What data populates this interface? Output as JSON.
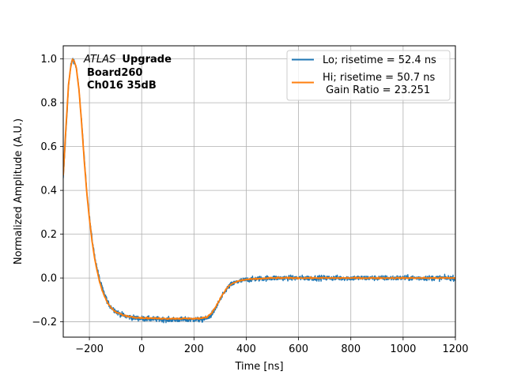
{
  "chart_data": {
    "type": "line",
    "xlabel": "Time [ns]",
    "ylabel": "Normalized Amplitude (A.U.)",
    "xlim": [
      -300,
      1200
    ],
    "ylim": [
      -0.27,
      1.06
    ],
    "x_ticks": [
      -200,
      0,
      200,
      400,
      600,
      800,
      1000,
      1200
    ],
    "x_tick_labels": [
      "−200",
      "0",
      "200",
      "400",
      "600",
      "800",
      "1000",
      "1200"
    ],
    "y_ticks": [
      -0.2,
      0.0,
      0.2,
      0.4,
      0.6,
      0.8,
      1.0
    ],
    "y_tick_labels": [
      "−0.2",
      "0.0",
      "0.2",
      "0.4",
      "0.6",
      "0.8",
      "1.0"
    ],
    "grid": true,
    "legend_position": "top-right",
    "annotation": {
      "experiment_italic": "ATLAS",
      "experiment_bold": "Upgrade",
      "line2": "Board260",
      "line3": "Ch016 35dB"
    },
    "series": [
      {
        "name": "Lo; risetime = 52.4 ns",
        "color": "#1f77b4",
        "noisy": true,
        "points": [
          [
            -300,
            0.45
          ],
          [
            -290,
            0.66
          ],
          [
            -280,
            0.87
          ],
          [
            -272,
            0.96
          ],
          [
            -265,
            1.0
          ],
          [
            -258,
            0.99
          ],
          [
            -250,
            0.96
          ],
          [
            -240,
            0.86
          ],
          [
            -230,
            0.72
          ],
          [
            -220,
            0.55
          ],
          [
            -210,
            0.4
          ],
          [
            -200,
            0.28
          ],
          [
            -190,
            0.18
          ],
          [
            -180,
            0.1
          ],
          [
            -170,
            0.04
          ],
          [
            -160,
            -0.01
          ],
          [
            -150,
            -0.05
          ],
          [
            -140,
            -0.08
          ],
          [
            -130,
            -0.11
          ],
          [
            -120,
            -0.13
          ],
          [
            -110,
            -0.14
          ],
          [
            -100,
            -0.15
          ],
          [
            -90,
            -0.16
          ],
          [
            -80,
            -0.165
          ],
          [
            -70,
            -0.17
          ],
          [
            -60,
            -0.175
          ],
          [
            -50,
            -0.177
          ],
          [
            -40,
            -0.18
          ],
          [
            -20,
            -0.183
          ],
          [
            0,
            -0.185
          ],
          [
            50,
            -0.188
          ],
          [
            100,
            -0.19
          ],
          [
            150,
            -0.19
          ],
          [
            200,
            -0.19
          ],
          [
            230,
            -0.19
          ],
          [
            250,
            -0.185
          ],
          [
            265,
            -0.17
          ],
          [
            280,
            -0.145
          ],
          [
            295,
            -0.11
          ],
          [
            310,
            -0.08
          ],
          [
            325,
            -0.05
          ],
          [
            340,
            -0.032
          ],
          [
            360,
            -0.02
          ],
          [
            380,
            -0.013
          ],
          [
            400,
            -0.008
          ],
          [
            450,
            -0.003
          ],
          [
            500,
            0.0
          ],
          [
            600,
            0.0
          ],
          [
            700,
            0.0
          ],
          [
            800,
            0.0
          ],
          [
            900,
            0.0
          ],
          [
            1000,
            0.0
          ],
          [
            1100,
            0.0
          ],
          [
            1200,
            0.0
          ]
        ]
      },
      {
        "name": "Hi; risetime = 50.7 ns\n Gain Ratio = 23.251",
        "color": "#ff7f0e",
        "noisy": false,
        "points": [
          [
            -300,
            0.47
          ],
          [
            -290,
            0.68
          ],
          [
            -280,
            0.88
          ],
          [
            -272,
            0.96
          ],
          [
            -265,
            1.0
          ],
          [
            -258,
            0.99
          ],
          [
            -250,
            0.96
          ],
          [
            -240,
            0.86
          ],
          [
            -230,
            0.71
          ],
          [
            -220,
            0.54
          ],
          [
            -210,
            0.39
          ],
          [
            -200,
            0.27
          ],
          [
            -190,
            0.17
          ],
          [
            -180,
            0.09
          ],
          [
            -170,
            0.03
          ],
          [
            -160,
            -0.02
          ],
          [
            -150,
            -0.06
          ],
          [
            -140,
            -0.09
          ],
          [
            -130,
            -0.115
          ],
          [
            -120,
            -0.13
          ],
          [
            -110,
            -0.145
          ],
          [
            -100,
            -0.155
          ],
          [
            -90,
            -0.16
          ],
          [
            -80,
            -0.165
          ],
          [
            -70,
            -0.17
          ],
          [
            -60,
            -0.173
          ],
          [
            -50,
            -0.175
          ],
          [
            -40,
            -0.177
          ],
          [
            -20,
            -0.18
          ],
          [
            0,
            -0.182
          ],
          [
            50,
            -0.184
          ],
          [
            100,
            -0.185
          ],
          [
            150,
            -0.185
          ],
          [
            200,
            -0.185
          ],
          [
            230,
            -0.184
          ],
          [
            250,
            -0.178
          ],
          [
            265,
            -0.162
          ],
          [
            280,
            -0.138
          ],
          [
            295,
            -0.105
          ],
          [
            310,
            -0.075
          ],
          [
            325,
            -0.048
          ],
          [
            340,
            -0.03
          ],
          [
            360,
            -0.018
          ],
          [
            380,
            -0.011
          ],
          [
            400,
            -0.007
          ],
          [
            450,
            -0.003
          ],
          [
            500,
            0.0
          ],
          [
            600,
            0.0
          ],
          [
            700,
            0.0
          ],
          [
            800,
            0.0
          ],
          [
            900,
            0.0
          ],
          [
            1000,
            0.0
          ],
          [
            1100,
            0.0
          ],
          [
            1200,
            0.0
          ]
        ]
      }
    ]
  }
}
